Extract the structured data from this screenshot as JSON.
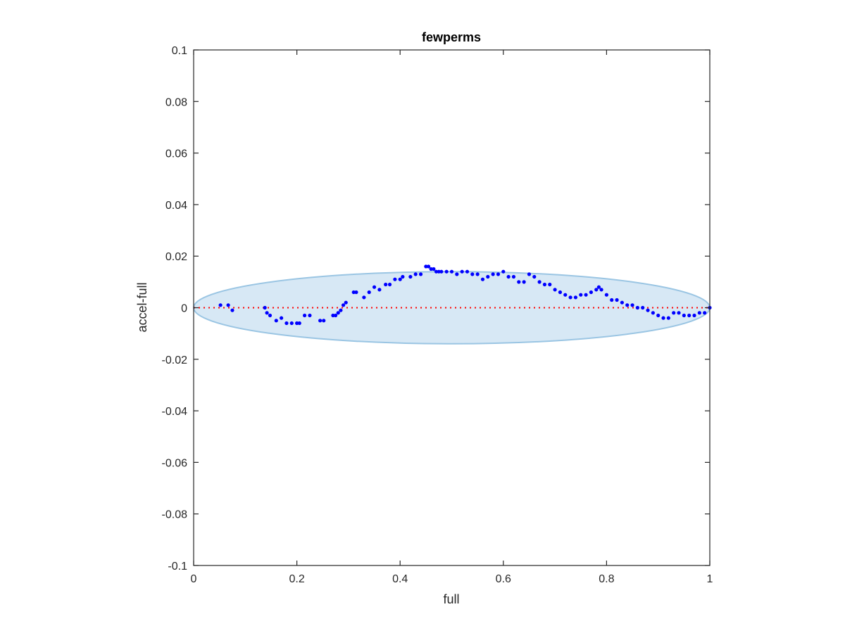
{
  "chart_data": {
    "type": "scatter",
    "title": "fewperms",
    "xlabel": "full",
    "ylabel": "accel-full",
    "xlim": [
      0,
      1
    ],
    "ylim": [
      -0.1,
      0.1
    ],
    "xticks": [
      0,
      0.2,
      0.4,
      0.6,
      0.8,
      1
    ],
    "xtick_labels": [
      "0",
      "0.2",
      "0.4",
      "0.6",
      "0.8",
      "1"
    ],
    "yticks": [
      -0.1,
      -0.08,
      -0.06,
      -0.04,
      -0.02,
      0,
      0.02,
      0.04,
      0.06,
      0.08,
      0.1
    ],
    "ytick_labels": [
      "-0.1",
      "-0.08",
      "-0.06",
      "-0.04",
      "-0.02",
      "0",
      "0.02",
      "0.04",
      "0.06",
      "0.08",
      "0.1"
    ],
    "grid": false,
    "reference_line": {
      "y": 0,
      "style": "dotted",
      "color": "#ff0000"
    },
    "ellipse": {
      "center": [
        0.5,
        0
      ],
      "semi_axis_x": 0.5,
      "semi_axis_y": 0.014,
      "fill": "#d7e8f5",
      "stroke": "#9ac5e3"
    },
    "series": [
      {
        "color": "#0000ff",
        "x": [
          0.052,
          0.067,
          0.075,
          0.138,
          0.142,
          0.148,
          0.16,
          0.17,
          0.18,
          0.19,
          0.2,
          0.205,
          0.215,
          0.225,
          0.245,
          0.252,
          0.27,
          0.275,
          0.28,
          0.285,
          0.29,
          0.295,
          0.31,
          0.315,
          0.33,
          0.34,
          0.35,
          0.36,
          0.372,
          0.38,
          0.39,
          0.4,
          0.405,
          0.42,
          0.43,
          0.44,
          0.45,
          0.455,
          0.46,
          0.465,
          0.47,
          0.475,
          0.48,
          0.49,
          0.5,
          0.51,
          0.52,
          0.53,
          0.54,
          0.55,
          0.56,
          0.57,
          0.58,
          0.59,
          0.6,
          0.61,
          0.62,
          0.63,
          0.64,
          0.65,
          0.66,
          0.67,
          0.68,
          0.69,
          0.7,
          0.71,
          0.72,
          0.73,
          0.74,
          0.75,
          0.76,
          0.77,
          0.78,
          0.785,
          0.79,
          0.8,
          0.81,
          0.82,
          0.83,
          0.84,
          0.85,
          0.86,
          0.87,
          0.88,
          0.89,
          0.9,
          0.91,
          0.92,
          0.93,
          0.94,
          0.95,
          0.96,
          0.97,
          0.98,
          0.99,
          1.0
        ],
        "y": [
          0.001,
          0.001,
          -0.001,
          0.0,
          -0.002,
          -0.003,
          -0.005,
          -0.004,
          -0.006,
          -0.006,
          -0.006,
          -0.006,
          -0.003,
          -0.003,
          -0.005,
          -0.005,
          -0.003,
          -0.003,
          -0.002,
          -0.001,
          0.001,
          0.002,
          0.006,
          0.006,
          0.004,
          0.006,
          0.008,
          0.007,
          0.009,
          0.009,
          0.011,
          0.011,
          0.012,
          0.012,
          0.013,
          0.013,
          0.016,
          0.016,
          0.015,
          0.015,
          0.014,
          0.014,
          0.014,
          0.014,
          0.014,
          0.013,
          0.014,
          0.014,
          0.013,
          0.013,
          0.011,
          0.012,
          0.013,
          0.013,
          0.014,
          0.012,
          0.012,
          0.01,
          0.01,
          0.013,
          0.012,
          0.01,
          0.009,
          0.009,
          0.007,
          0.006,
          0.005,
          0.004,
          0.004,
          0.005,
          0.005,
          0.006,
          0.007,
          0.008,
          0.007,
          0.005,
          0.003,
          0.003,
          0.002,
          0.001,
          0.001,
          0.0,
          0.0,
          -0.001,
          -0.002,
          -0.003,
          -0.004,
          -0.004,
          -0.002,
          -0.002,
          -0.003,
          -0.003,
          -0.003,
          -0.002,
          -0.002,
          0.0
        ]
      }
    ]
  }
}
